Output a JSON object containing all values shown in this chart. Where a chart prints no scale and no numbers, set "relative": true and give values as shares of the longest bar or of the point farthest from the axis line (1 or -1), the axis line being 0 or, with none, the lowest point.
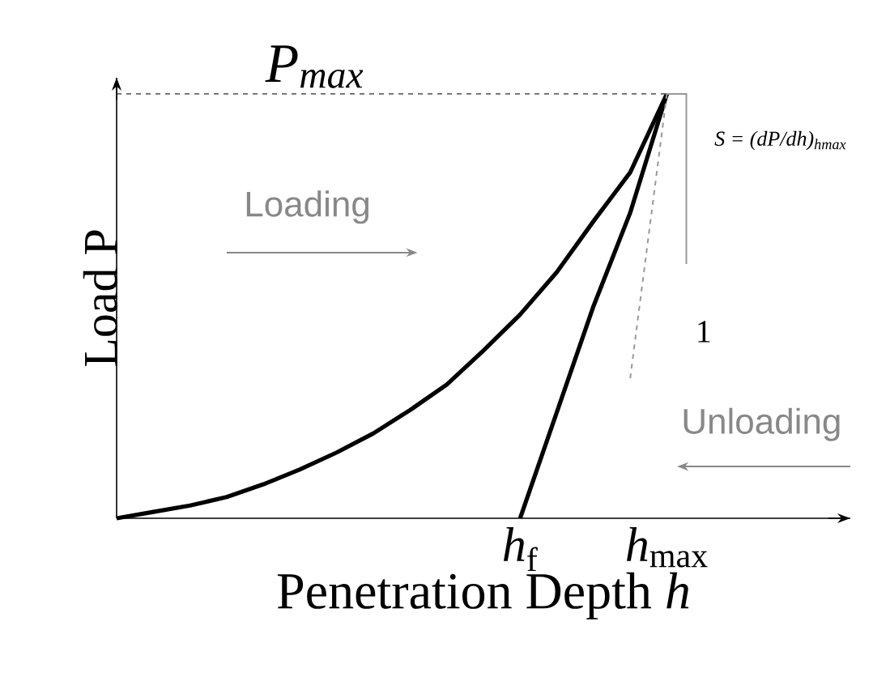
{
  "chart_data": {
    "type": "line",
    "relative": true,
    "xlabel": "Penetration Depth *h*",
    "ylabel": "Load P",
    "categories": [
      null,
      null,
      null,
      null,
      null,
      null,
      null,
      null,
      null,
      null,
      null,
      "*h*$_{f}$",
      null,
      null,
      null,
      "*h*$_{max}$",
      null,
      null,
      null,
      null,
      null
    ],
    "series": [
      {
        "color": "#000000",
        "values": [
          0,
          0.015,
          0.03,
          0.05,
          0.08,
          0.115,
          0.155,
          0.2,
          0.255,
          0.315,
          0.395,
          0.48,
          0.58,
          0.7,
          0.815,
          1,
          null,
          null,
          null,
          null,
          null
        ]
      },
      {
        "color": "#000000",
        "values": [
          null,
          null,
          null,
          null,
          null,
          null,
          null,
          null,
          null,
          null,
          null,
          0,
          0.25,
          0.5,
          0.72,
          1,
          null,
          null,
          null,
          null,
          null
        ]
      },
      {
        "color": "#999999",
        "line_style": "dashed",
        "values": [
          null,
          null,
          null,
          null,
          null,
          null,
          null,
          null,
          null,
          null,
          null,
          null,
          null,
          null,
          0.33,
          1,
          null,
          null,
          null,
          null,
          null
        ]
      }
    ],
    "ref_lines": [
      {
        "axis": "y",
        "value": 1,
        "label": "P$_{max}$",
        "color": "#666666",
        "line_style": "dashed"
      }
    ],
    "annotations": [
      "Loading",
      "Unloading",
      "S = (dP/dh)$_{hmax}$",
      "1"
    ]
  }
}
